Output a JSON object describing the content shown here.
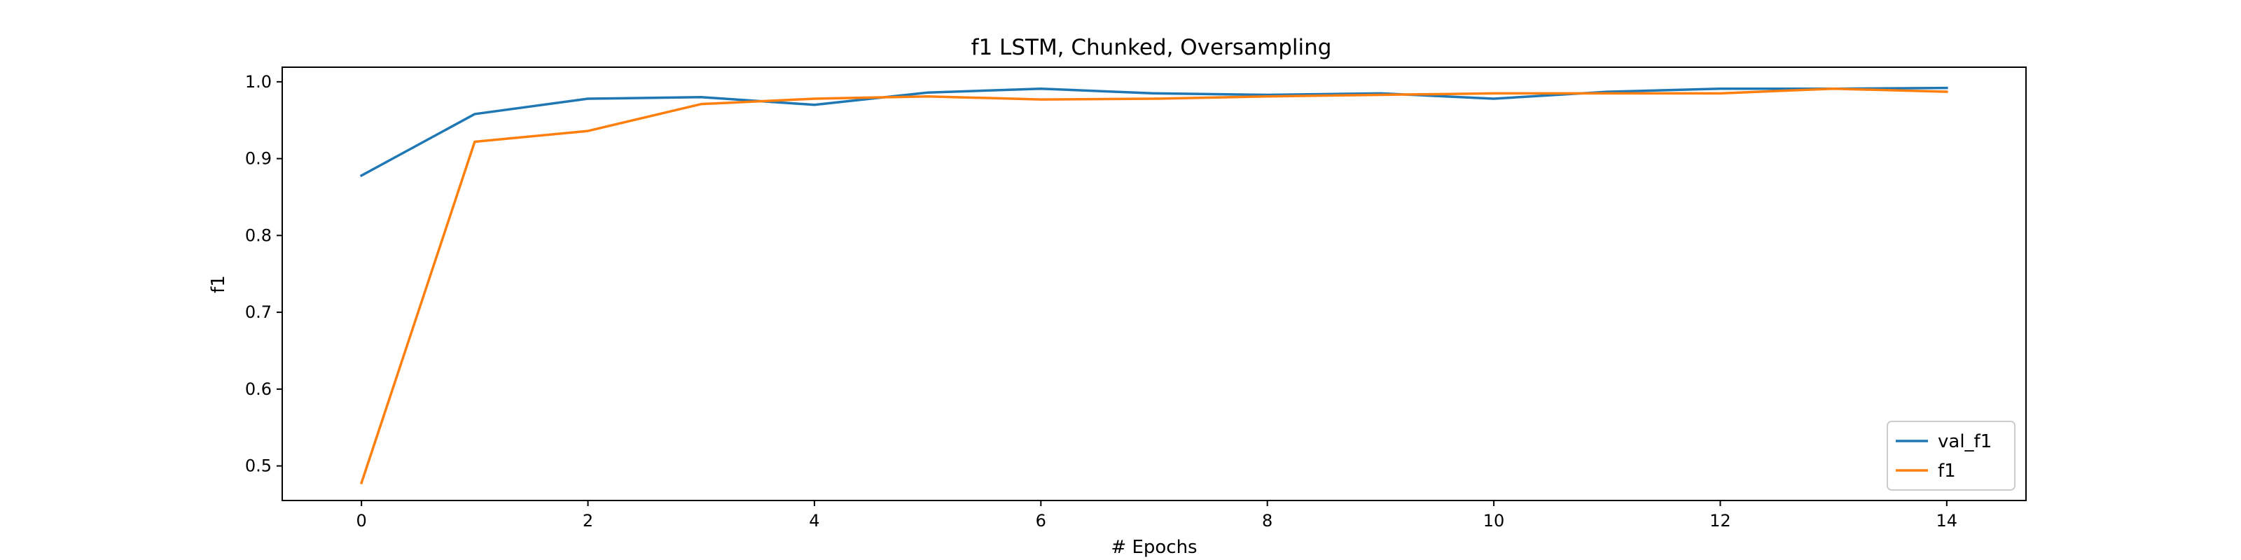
{
  "chart_data": {
    "type": "line",
    "title": "f1 LSTM, Chunked, Oversampling",
    "xlabel": "# Epochs",
    "ylabel": "f1",
    "x": [
      0,
      1,
      2,
      3,
      4,
      5,
      6,
      7,
      8,
      9,
      10,
      11,
      12,
      13,
      14
    ],
    "x_ticks": [
      "0",
      "2",
      "4",
      "6",
      "8",
      "10",
      "12",
      "14"
    ],
    "y_ticks": [
      "0.5",
      "0.6",
      "0.7",
      "0.8",
      "0.9",
      "1.0"
    ],
    "xlim": [
      -0.7,
      14.7
    ],
    "ylim": [
      0.455,
      1.019
    ],
    "grid": false,
    "legend_position": "lower-right",
    "series": [
      {
        "name": "val_f1",
        "color": "#1f77b4",
        "values": [
          0.878,
          0.958,
          0.978,
          0.98,
          0.97,
          0.986,
          0.991,
          0.985,
          0.983,
          0.985,
          0.978,
          0.987,
          0.991,
          0.991,
          0.992
        ]
      },
      {
        "name": "f1",
        "color": "#ff7f0e",
        "values": [
          0.478,
          0.922,
          0.936,
          0.971,
          0.978,
          0.981,
          0.977,
          0.978,
          0.981,
          0.983,
          0.985,
          0.985,
          0.985,
          0.991,
          0.987
        ]
      }
    ]
  }
}
